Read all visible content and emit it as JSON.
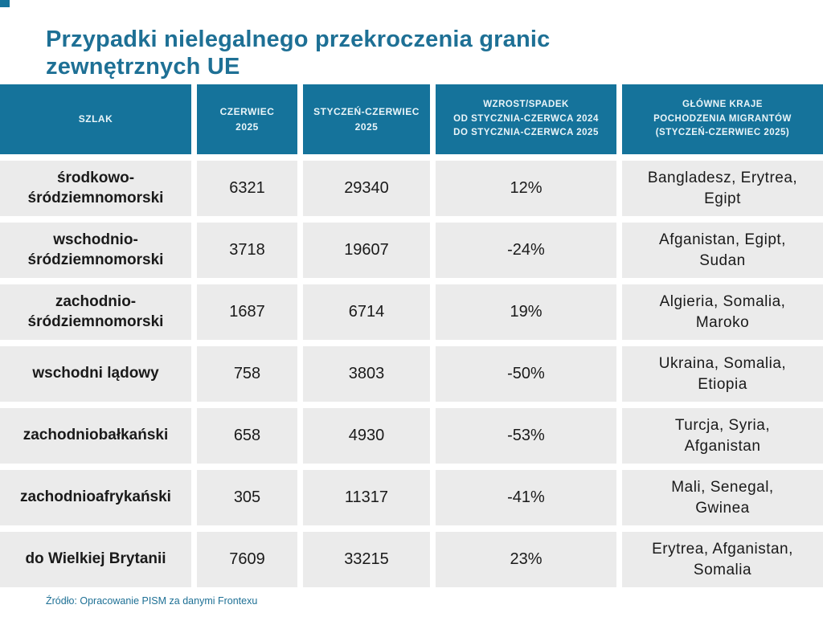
{
  "page": {
    "title": "Przypadki nielegalnego przekroczenia granic\nzewnętrznych UE",
    "source": "Źródło: Opracowanie PISM za danymi Frontexu"
  },
  "colors": {
    "accent": "#15739B",
    "title": "#1E7095",
    "row_bg": "#EBEBEB",
    "header_text": "#EAF5F9",
    "cell_text": "#1A1A1A"
  },
  "table": {
    "header": [
      "SZLAK",
      "CZERWIEC\n2025",
      "STYCZEŃ-CZERWIEC\n2025",
      "WZROST/SPADEK\nOD STYCZNIA-CZERWCA 2024\nDO STYCZNIA-CZERWCA 2025",
      "GŁÓWNE KRAJE\nPOCHODZENIA MIGRANTÓW\n(STYCZEŃ-CZERWIEC 2025)"
    ],
    "rows": [
      {
        "route": "środkowo-\nśródziemnomorski",
        "june": "6321",
        "jan_june": "29340",
        "change": "12%",
        "countries": "Bangladesz, Erytrea,\nEgipt"
      },
      {
        "route": "wschodnio-\nśródziemnomorski",
        "june": "3718",
        "jan_june": "19607",
        "change": "-24%",
        "countries": "Afganistan, Egipt,\nSudan"
      },
      {
        "route": "zachodnio-\nśródziemnomorski",
        "june": "1687",
        "jan_june": "6714",
        "change": "19%",
        "countries": "Algieria, Somalia,\nMaroko"
      },
      {
        "route": "wschodni lądowy",
        "june": "758",
        "jan_june": "3803",
        "change": "-50%",
        "countries": "Ukraina, Somalia,\nEtiopia"
      },
      {
        "route": "zachodniobałkański",
        "june": "658",
        "jan_june": "4930",
        "change": "-53%",
        "countries": "Turcja, Syria,\nAfganistan"
      },
      {
        "route": "zachodnioafrykański",
        "june": "305",
        "jan_june": "11317",
        "change": "-41%",
        "countries": "Mali, Senegal,\nGwinea"
      },
      {
        "route": "do Wielkiej Brytanii",
        "june": "7609",
        "jan_june": "33215",
        "change": "23%",
        "countries": "Erytrea, Afganistan,\nSomalia"
      }
    ]
  },
  "chart_data": {
    "type": "table",
    "title": "Przypadki nielegalnego przekroczenia granic zewnętrznych UE",
    "columns": [
      "SZLAK",
      "CZERWIEC 2025",
      "STYCZEŃ-CZERWIEC 2025",
      "WZROST/SPADEK OD STYCZNIA-CZERWCA 2024 DO STYCZNIA-CZERWCA 2025",
      "GŁÓWNE KRAJE POCHODZENIA MIGRANTÓW (STYCZEŃ-CZERWIEC 2025)"
    ],
    "rows": [
      [
        "środkowo-śródziemnomorski",
        6321,
        29340,
        "12%",
        "Bangladesz, Erytrea, Egipt"
      ],
      [
        "wschodnio-śródziemnomorski",
        3718,
        19607,
        "-24%",
        "Afganistan, Egipt, Sudan"
      ],
      [
        "zachodnio-śródziemnomorski",
        1687,
        6714,
        "19%",
        "Algieria, Somalia, Maroko"
      ],
      [
        "wschodni lądowy",
        758,
        3803,
        "-50%",
        "Ukraina, Somalia, Etiopia"
      ],
      [
        "zachodniobałkański",
        658,
        4930,
        "-53%",
        "Turcja, Syria, Afganistan"
      ],
      [
        "zachodnioafrykański",
        305,
        11317,
        "-41%",
        "Mali, Senegal, Gwinea"
      ],
      [
        "do Wielkiej Brytanii",
        7609,
        33215,
        "23%",
        "Erytrea, Afganistan, Somalia"
      ]
    ],
    "source": "Źródło: Opracowanie PISM za danymi Frontexu"
  }
}
